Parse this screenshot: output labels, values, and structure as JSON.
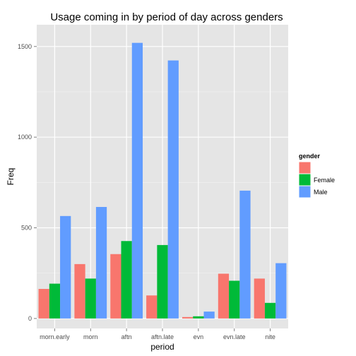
{
  "chart_data": {
    "type": "bar",
    "title": "Usage coming in by period of day across genders",
    "xlabel": "period",
    "ylabel": "Freq",
    "categories": [
      "morn.early",
      "morn",
      "aftn",
      "aftn.late",
      "evn",
      "evn.late",
      "nite"
    ],
    "ylim": [
      -55,
      1620
    ],
    "yticks": [
      0,
      500,
      1000,
      1500
    ],
    "yticks_labels": [
      "0",
      "500",
      "1000",
      "1500"
    ],
    "grid": true,
    "legend": {
      "title": "gender",
      "position": "right"
    },
    "series": [
      {
        "name": "",
        "color": "#F8766D",
        "values": [
          163,
          300,
          355,
          127,
          8,
          247,
          220
        ]
      },
      {
        "name": "Female",
        "color": "#00BA38",
        "values": [
          192,
          220,
          427,
          405,
          12,
          208,
          86
        ]
      },
      {
        "name": "Male",
        "color": "#619CFF",
        "values": [
          565,
          615,
          1520,
          1423,
          38,
          705,
          305
        ]
      }
    ]
  }
}
